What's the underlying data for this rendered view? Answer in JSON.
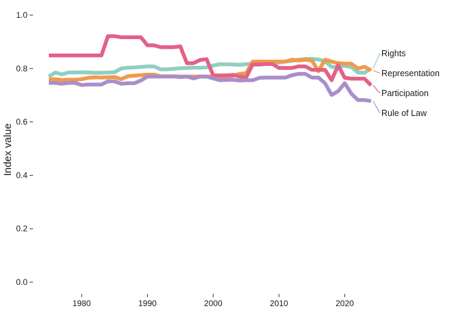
{
  "chart_data": {
    "type": "line",
    "title": "",
    "xlabel": "",
    "ylabel": "Index value",
    "xlim": [
      1975,
      2024
    ],
    "ylim": [
      0,
      1
    ],
    "x_ticks": [
      1980,
      1990,
      2000,
      2010,
      2020
    ],
    "y_ticks": [
      "0.0",
      "0.2",
      "0.4",
      "0.6",
      "0.8",
      "1.0"
    ],
    "grid": false,
    "legend": "direct labels at right end of lines",
    "x": [
      1975,
      1976,
      1977,
      1978,
      1979,
      1980,
      1981,
      1982,
      1983,
      1984,
      1985,
      1986,
      1987,
      1988,
      1989,
      1990,
      1991,
      1992,
      1993,
      1994,
      1995,
      1996,
      1997,
      1998,
      1999,
      2000,
      2001,
      2002,
      2003,
      2004,
      2005,
      2006,
      2007,
      2008,
      2009,
      2010,
      2011,
      2012,
      2013,
      2014,
      2015,
      2016,
      2017,
      2018,
      2019,
      2020,
      2021,
      2022,
      2023,
      2024
    ],
    "series": [
      {
        "name": "Rights",
        "color": "#8ecfc2",
        "values": [
          0.77,
          0.785,
          0.778,
          0.785,
          0.785,
          0.786,
          0.785,
          0.784,
          0.784,
          0.785,
          0.786,
          0.8,
          0.803,
          0.804,
          0.806,
          0.808,
          0.808,
          0.797,
          0.797,
          0.799,
          0.801,
          0.802,
          0.803,
          0.803,
          0.804,
          0.811,
          0.816,
          0.816,
          0.815,
          0.814,
          0.816,
          0.818,
          0.822,
          0.822,
          0.822,
          0.822,
          0.826,
          0.829,
          0.833,
          0.836,
          0.836,
          0.834,
          0.827,
          0.806,
          0.806,
          0.81,
          0.806,
          0.785,
          0.784,
          0.8
        ]
      },
      {
        "name": "Representation",
        "color": "#f09a4c",
        "values": [
          0.76,
          0.76,
          0.757,
          0.758,
          0.758,
          0.76,
          0.765,
          0.767,
          0.766,
          0.767,
          0.768,
          0.76,
          0.771,
          0.773,
          0.775,
          0.777,
          0.777,
          0.771,
          0.771,
          0.771,
          0.77,
          0.77,
          0.77,
          0.77,
          0.77,
          0.77,
          0.77,
          0.77,
          0.773,
          0.78,
          0.782,
          0.826,
          0.826,
          0.826,
          0.826,
          0.826,
          0.826,
          0.833,
          0.83,
          0.833,
          0.83,
          0.79,
          0.833,
          0.826,
          0.82,
          0.818,
          0.818,
          0.8,
          0.807,
          0.793
        ]
      },
      {
        "name": "Participation",
        "color": "#e26186",
        "values": [
          0.849,
          0.849,
          0.849,
          0.849,
          0.849,
          0.849,
          0.849,
          0.849,
          0.849,
          0.921,
          0.921,
          0.917,
          0.917,
          0.917,
          0.917,
          0.887,
          0.887,
          0.88,
          0.88,
          0.88,
          0.883,
          0.82,
          0.82,
          0.832,
          0.835,
          0.774,
          0.774,
          0.774,
          0.776,
          0.77,
          0.766,
          0.815,
          0.815,
          0.817,
          0.817,
          0.802,
          0.802,
          0.802,
          0.808,
          0.808,
          0.795,
          0.795,
          0.795,
          0.756,
          0.812,
          0.765,
          0.762,
          0.762,
          0.762,
          0.737
        ]
      },
      {
        "name": "Rule of Law",
        "color": "#a98ecb",
        "values": [
          0.746,
          0.746,
          0.743,
          0.746,
          0.746,
          0.738,
          0.74,
          0.74,
          0.74,
          0.752,
          0.752,
          0.743,
          0.745,
          0.745,
          0.755,
          0.77,
          0.77,
          0.77,
          0.77,
          0.77,
          0.768,
          0.77,
          0.763,
          0.77,
          0.77,
          0.763,
          0.756,
          0.757,
          0.758,
          0.755,
          0.756,
          0.756,
          0.765,
          0.766,
          0.766,
          0.766,
          0.766,
          0.775,
          0.78,
          0.78,
          0.766,
          0.766,
          0.745,
          0.701,
          0.715,
          0.745,
          0.706,
          0.682,
          0.682,
          0.678
        ]
      }
    ]
  }
}
